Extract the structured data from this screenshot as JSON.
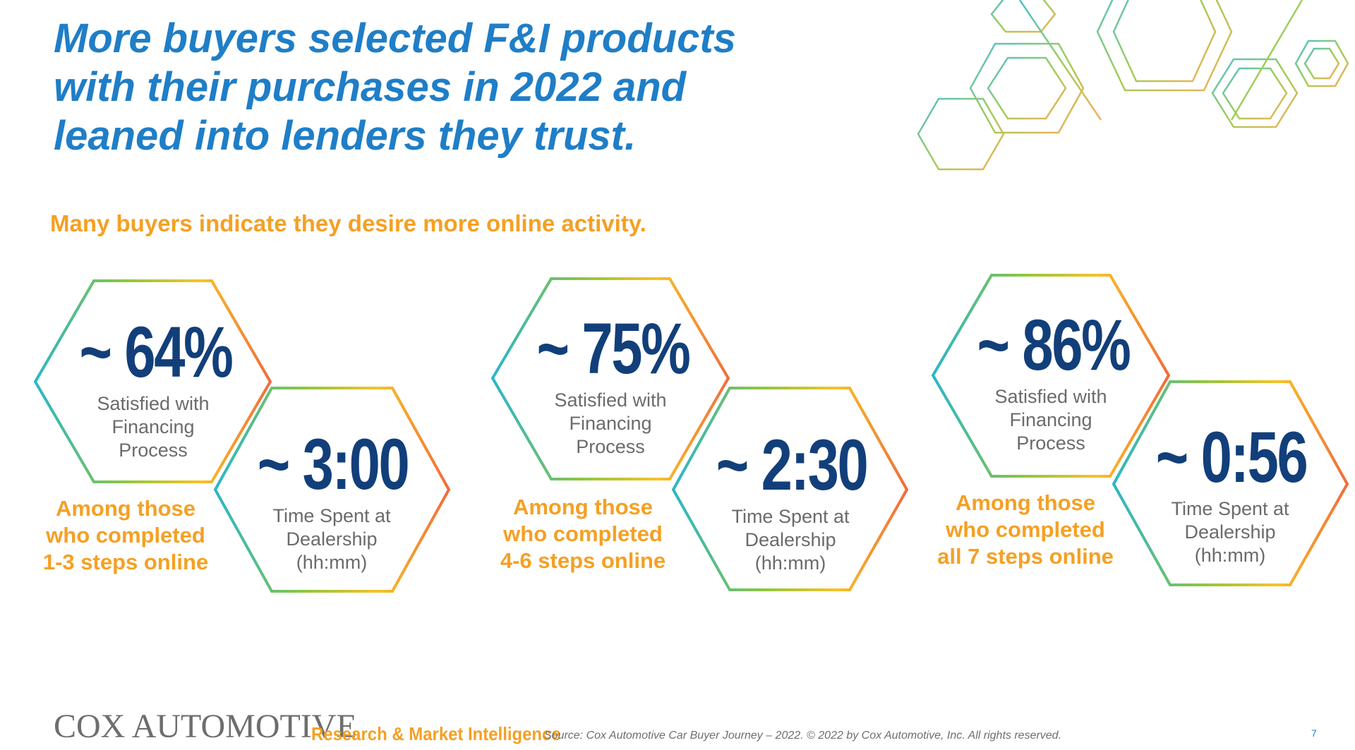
{
  "slide": {
    "title_lines": [
      "More buyers selected F&I products",
      "with their purchases in 2022 and",
      "leaned into lenders they trust."
    ],
    "subtitle": "Many buyers indicate they desire more online activity."
  },
  "groups": [
    {
      "satisfaction_value": "~ 64%",
      "satisfaction_label_lines": [
        "Satisfied with",
        "Financing",
        "Process"
      ],
      "time_value": "~ 3:00",
      "time_label_lines": [
        "Time Spent at",
        "Dealership",
        "(hh:mm)"
      ],
      "caption_lines": [
        "Among those",
        "who completed",
        "1-3 steps online"
      ]
    },
    {
      "satisfaction_value": "~ 75%",
      "satisfaction_label_lines": [
        "Satisfied with",
        "Financing",
        "Process"
      ],
      "time_value": "~ 2:30",
      "time_label_lines": [
        "Time Spent at",
        "Dealership",
        "(hh:mm)"
      ],
      "caption_lines": [
        "Among those",
        "who completed",
        "4-6 steps online"
      ]
    },
    {
      "satisfaction_value": "~ 86%",
      "satisfaction_label_lines": [
        "Satisfied with",
        "Financing",
        "Process"
      ],
      "time_value": "~ 0:56",
      "time_label_lines": [
        "Time Spent at",
        "Dealership",
        "(hh:mm)"
      ],
      "caption_lines": [
        "Among those",
        "who completed",
        "all 7 steps online"
      ]
    }
  ],
  "footer": {
    "logo": "COX AUTOMOTIVE",
    "division": "Research & Market Intelligence",
    "source": "Source: Cox Automotive Car Buyer Journey – 2022. © 2022 by Cox Automotive, Inc. All rights reserved.",
    "page_number": "7"
  },
  "colors": {
    "title_blue": "#1f7ec7",
    "accent_orange": "#f5a023",
    "stat_navy": "#123f7a",
    "label_gray": "#6b6b6b",
    "hex_gradient": [
      "#2bb6c9",
      "#8cc63f",
      "#f7c325",
      "#f26b3a"
    ]
  }
}
